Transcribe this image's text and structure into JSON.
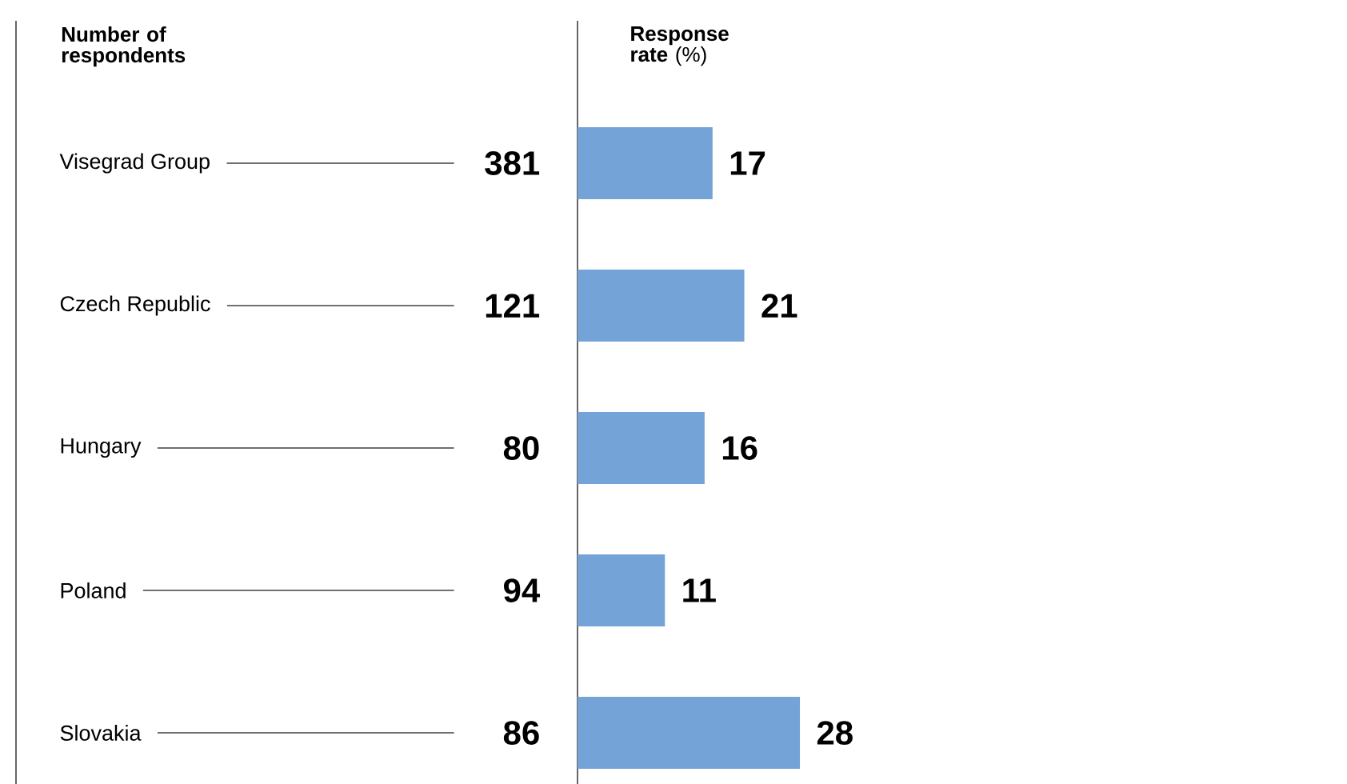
{
  "chart_data": [
    {
      "type": "other",
      "title": "Number of respondents",
      "categories": [
        "Visegrad Group",
        "Czech Republic",
        "Hungary",
        "Poland",
        "Slovakia"
      ],
      "values": [
        381,
        121,
        80,
        94,
        86
      ],
      "data_labels": true
    },
    {
      "type": "bar",
      "orientation": "horizontal",
      "title": "**Response rate** (%)",
      "categories": [
        null,
        null,
        null,
        null,
        null
      ],
      "values": [
        17,
        21,
        16,
        11,
        28
      ],
      "color": "#74a3d7",
      "data_labels": true
    }
  ]
}
